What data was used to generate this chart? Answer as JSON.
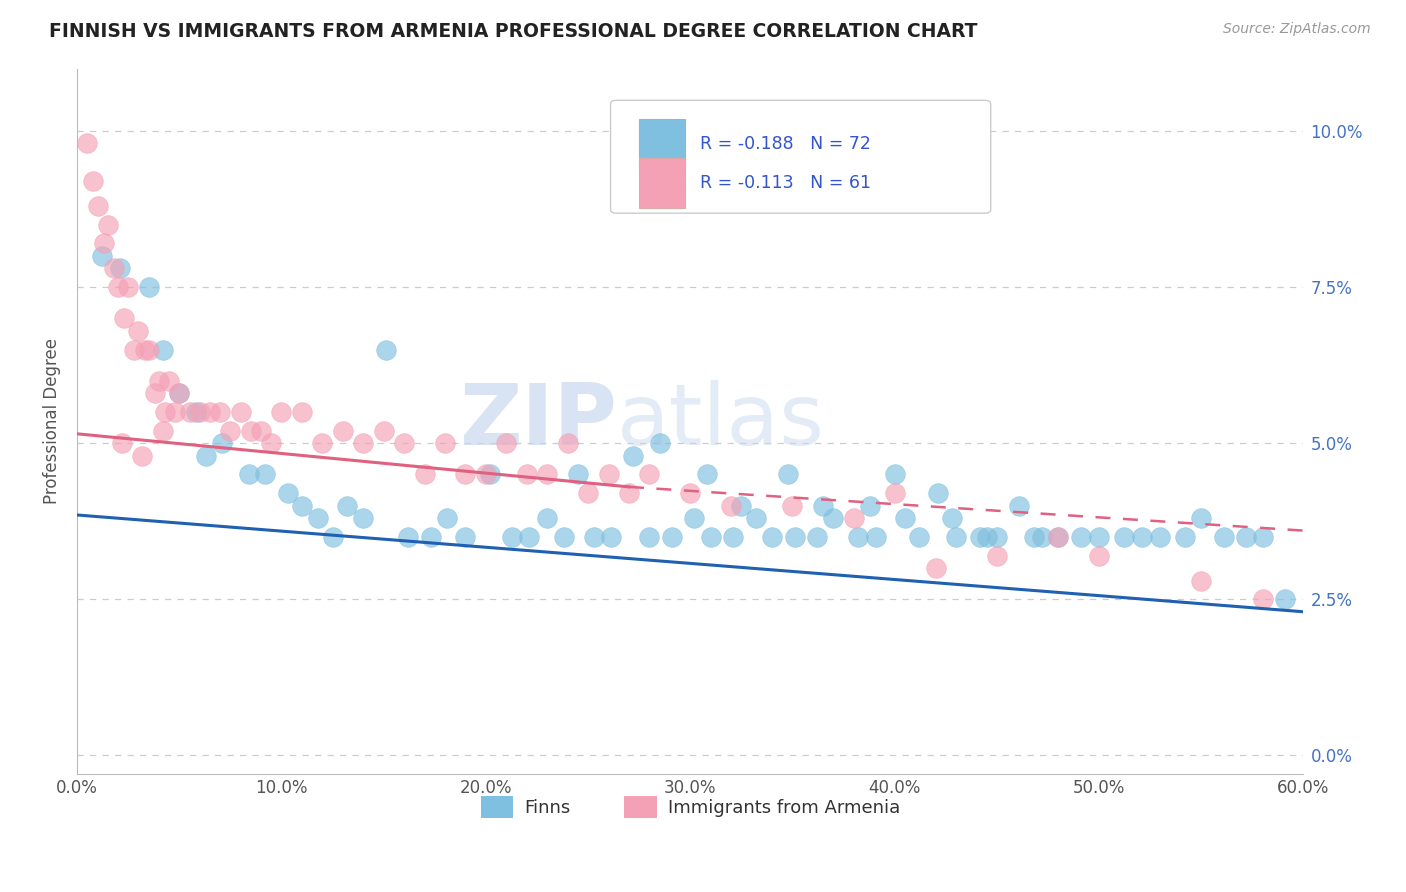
{
  "title": "FINNISH VS IMMIGRANTS FROM ARMENIA PROFESSIONAL DEGREE CORRELATION CHART",
  "source": "Source: ZipAtlas.com",
  "ylabel_label": "Professional Degree",
  "xlim": [
    0.0,
    60.0
  ],
  "ylim": [
    -0.3,
    11.0
  ],
  "finns_color": "#7fbfdf",
  "armenia_color": "#f4a0b5",
  "finns_line_color": "#2060b0",
  "armenia_line_color": "#e06080",
  "finns_R": -0.188,
  "finns_N": 72,
  "armenia_R": -0.113,
  "armenia_N": 61,
  "legend_label_1": "Finns",
  "legend_label_2": "Immigrants from Armenia",
  "finns_scatter_x": [
    1.2,
    2.1,
    3.5,
    4.2,
    5.0,
    5.8,
    6.3,
    7.1,
    8.4,
    9.2,
    10.3,
    11.0,
    11.8,
    12.5,
    13.2,
    14.0,
    15.1,
    16.2,
    17.3,
    18.1,
    19.0,
    20.2,
    21.3,
    22.1,
    23.0,
    23.8,
    24.5,
    25.3,
    26.1,
    27.2,
    28.0,
    29.1,
    30.2,
    31.0,
    32.1,
    33.2,
    34.0,
    35.1,
    36.2,
    37.0,
    38.2,
    39.1,
    40.0,
    41.2,
    42.1,
    43.0,
    44.2,
    45.0,
    46.1,
    47.2,
    48.0,
    49.1,
    50.0,
    51.2,
    52.1,
    53.0,
    54.2,
    55.0,
    56.1,
    57.2,
    58.0,
    59.1,
    28.5,
    30.8,
    32.5,
    34.8,
    36.5,
    38.8,
    40.5,
    42.8,
    44.5,
    46.8
  ],
  "finns_scatter_y": [
    8.0,
    7.8,
    7.5,
    6.5,
    5.8,
    5.5,
    4.8,
    5.0,
    4.5,
    4.5,
    4.2,
    4.0,
    3.8,
    3.5,
    4.0,
    3.8,
    6.5,
    3.5,
    3.5,
    3.8,
    3.5,
    4.5,
    3.5,
    3.5,
    3.8,
    3.5,
    4.5,
    3.5,
    3.5,
    4.8,
    3.5,
    3.5,
    3.8,
    3.5,
    3.5,
    3.8,
    3.5,
    3.5,
    3.5,
    3.8,
    3.5,
    3.5,
    4.5,
    3.5,
    4.2,
    3.5,
    3.5,
    3.5,
    4.0,
    3.5,
    3.5,
    3.5,
    3.5,
    3.5,
    3.5,
    3.5,
    3.5,
    3.8,
    3.5,
    3.5,
    3.5,
    2.5,
    5.0,
    4.5,
    4.0,
    4.5,
    4.0,
    4.0,
    3.8,
    3.8,
    3.5,
    3.5
  ],
  "armenia_scatter_x": [
    0.5,
    0.8,
    1.0,
    1.3,
    1.5,
    1.8,
    2.0,
    2.3,
    2.5,
    2.8,
    3.0,
    3.3,
    3.5,
    3.8,
    4.0,
    4.3,
    4.5,
    4.8,
    5.0,
    5.5,
    6.0,
    6.5,
    7.0,
    7.5,
    8.0,
    8.5,
    9.0,
    9.5,
    10.0,
    11.0,
    12.0,
    13.0,
    14.0,
    15.0,
    16.0,
    17.0,
    18.0,
    19.0,
    20.0,
    21.0,
    22.0,
    23.0,
    24.0,
    25.0,
    26.0,
    27.0,
    28.0,
    30.0,
    32.0,
    35.0,
    38.0,
    40.0,
    42.0,
    45.0,
    48.0,
    50.0,
    55.0,
    58.0,
    2.2,
    3.2,
    4.2
  ],
  "armenia_scatter_y": [
    9.8,
    9.2,
    8.8,
    8.2,
    8.5,
    7.8,
    7.5,
    7.0,
    7.5,
    6.5,
    6.8,
    6.5,
    6.5,
    5.8,
    6.0,
    5.5,
    6.0,
    5.5,
    5.8,
    5.5,
    5.5,
    5.5,
    5.5,
    5.2,
    5.5,
    5.2,
    5.2,
    5.0,
    5.5,
    5.5,
    5.0,
    5.2,
    5.0,
    5.2,
    5.0,
    4.5,
    5.0,
    4.5,
    4.5,
    5.0,
    4.5,
    4.5,
    5.0,
    4.2,
    4.5,
    4.2,
    4.5,
    4.2,
    4.0,
    4.0,
    3.8,
    4.2,
    3.0,
    3.2,
    3.5,
    3.2,
    2.8,
    2.5,
    5.0,
    4.8,
    5.2
  ],
  "finns_trend_x0": 0.0,
  "finns_trend_y0": 3.85,
  "finns_trend_x1": 60.0,
  "finns_trend_y1": 2.3,
  "armenia_trend_x0": 0.0,
  "armenia_trend_y0": 5.15,
  "armenia_trend_solid_x1": 27.0,
  "armenia_trend_solid_y1": 4.3,
  "armenia_trend_dash_x1": 60.0,
  "armenia_trend_dash_y1": 3.6,
  "watermark": "ZIPatlas",
  "background_color": "#ffffff",
  "grid_color": "#cccccc",
  "right_ytick_color": "#4472c4",
  "ytick_vals": [
    0.0,
    2.5,
    5.0,
    7.5,
    10.0
  ],
  "xtick_vals": [
    0,
    10,
    20,
    30,
    40,
    50,
    60
  ]
}
